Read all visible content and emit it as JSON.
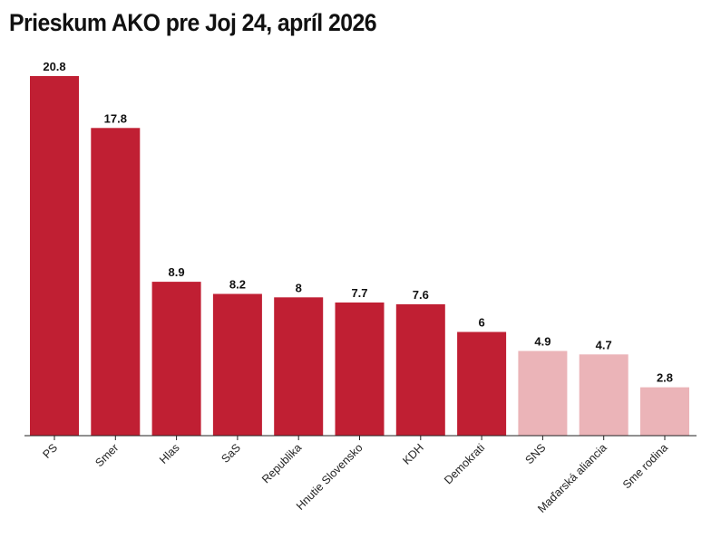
{
  "colors": {
    "primary": "#c01f33",
    "secondary": "#ebb4b8",
    "axis": "#222222"
  },
  "chart_data": {
    "type": "bar",
    "title": "Prieskum AKO pre Joj 24, apríl 2026",
    "categories": [
      "PS",
      "Smer",
      "Hlas",
      "SaS",
      "Republika",
      "Hnutie Slovensko",
      "KDH",
      "Demokrati",
      "SNS",
      "Maďarská aliancia",
      "Sme rodina"
    ],
    "values": [
      20.8,
      17.8,
      8.9,
      8.2,
      8,
      7.7,
      7.6,
      6,
      4.9,
      4.7,
      2.8
    ],
    "value_labels": [
      "20.8",
      "17.8",
      "8.9",
      "8.2",
      "8",
      "7.7",
      "7.6",
      "6",
      "4.9",
      "4.7",
      "2.8"
    ],
    "highlight": [
      true,
      true,
      true,
      true,
      true,
      true,
      true,
      true,
      false,
      false,
      false
    ],
    "xlabel": "",
    "ylabel": "",
    "ylim": [
      0,
      20.8
    ],
    "grid": false,
    "legend": "none"
  }
}
